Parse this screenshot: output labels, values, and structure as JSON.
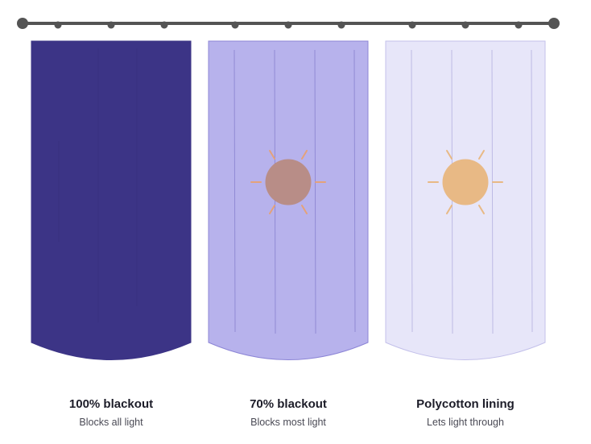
{
  "curtains": [
    {
      "title": "100% blackout",
      "subtitle": "Blocks all light",
      "fill_color": "#3c3486",
      "stroke_color": "#3c3486",
      "fold_color": "#312a72",
      "show_sun": false
    },
    {
      "title": "70% blackout",
      "subtitle": "Blocks most light",
      "fill_color": "#b7b2ec",
      "stroke_color": "#8c85d6",
      "fold_color": "#8d86d2",
      "show_sun": true,
      "sun_color": "#b88d87",
      "ray_color": "#e4a27a"
    },
    {
      "title": "Polycotton lining",
      "subtitle": "Lets light through",
      "fill_color": "#e7e6f9",
      "stroke_color": "#c3c0ea",
      "fold_color": "#b9b6e2",
      "show_sun": true,
      "sun_color": "#e8b985",
      "ray_color": "#e8b985"
    }
  ],
  "rod_color": "#545454"
}
